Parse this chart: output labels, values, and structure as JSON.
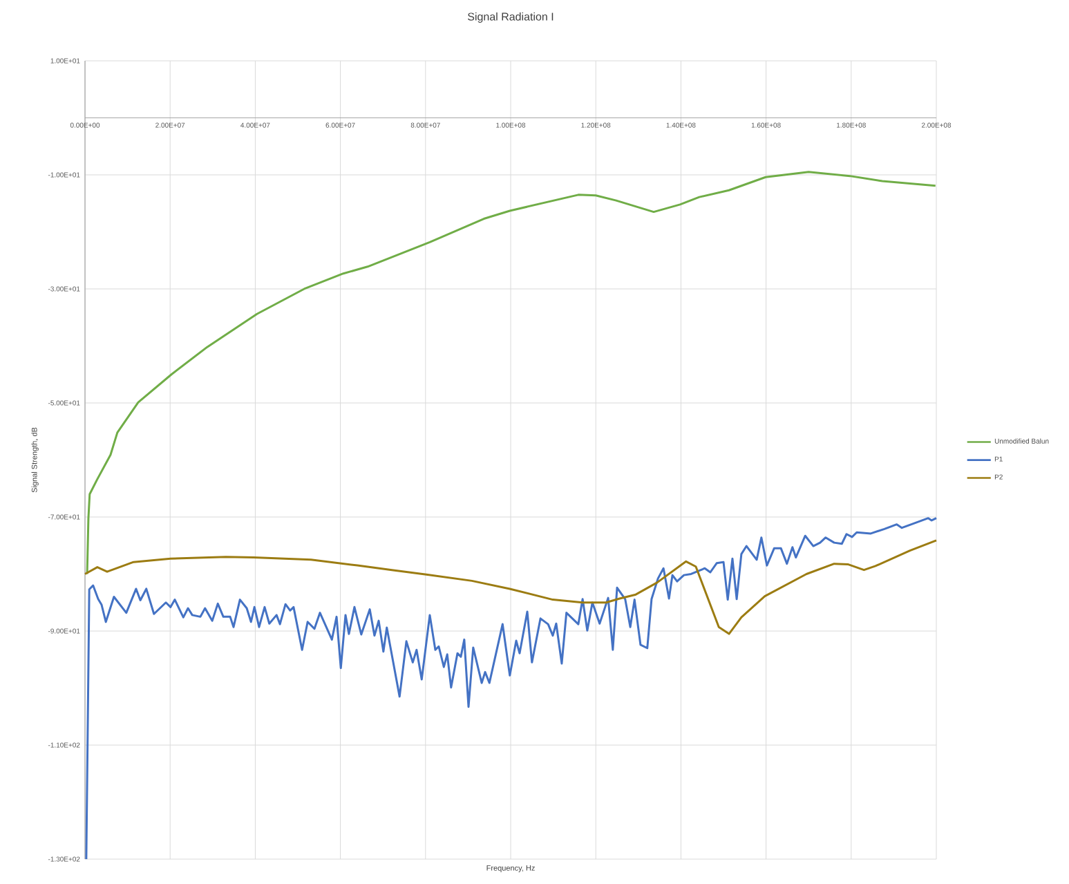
{
  "chart_data": {
    "type": "line",
    "title": "Signal Radiation I",
    "xlabel": "Frequency, Hz",
    "ylabel": "Signal Strength, dB",
    "xlim": [
      0,
      200000000.0
    ],
    "ylim": [
      -130,
      10
    ],
    "xticks": [
      {
        "value": 0,
        "label": "0.00E+00"
      },
      {
        "value": 20000000.0,
        "label": "2.00E+07"
      },
      {
        "value": 40000000.0,
        "label": "4.00E+07"
      },
      {
        "value": 60000000.0,
        "label": "6.00E+07"
      },
      {
        "value": 80000000.0,
        "label": "8.00E+07"
      },
      {
        "value": 100000000.0,
        "label": "1.00E+08"
      },
      {
        "value": 120000000.0,
        "label": "1.20E+08"
      },
      {
        "value": 140000000.0,
        "label": "1.40E+08"
      },
      {
        "value": 160000000.0,
        "label": "1.60E+08"
      },
      {
        "value": 180000000.0,
        "label": "1.80E+08"
      },
      {
        "value": 200000000.0,
        "label": "2.00E+08"
      }
    ],
    "yticks": [
      {
        "value": 10,
        "label": "1.00E+01"
      },
      {
        "value": -10,
        "label": "-1.00E+01"
      },
      {
        "value": -30,
        "label": "-3.00E+01"
      },
      {
        "value": -50,
        "label": "-5.00E+01"
      },
      {
        "value": -70,
        "label": "-7.00E+01"
      },
      {
        "value": -90,
        "label": "-9.00E+01"
      },
      {
        "value": -110,
        "label": "-1.10E+02"
      },
      {
        "value": -130,
        "label": "-1.30E+02"
      }
    ],
    "grid": true,
    "legend": "right",
    "series": [
      {
        "name": "Unmodified Balun",
        "color": "#70ad47",
        "x": [
          500000.0,
          800000.0,
          1100000.0,
          2800000.0,
          6000000.0,
          7600000.0,
          12500000.0,
          20300000.0,
          28700000.0,
          40400000.0,
          51500000.0,
          60700000.0,
          66400000.0,
          81000000.0,
          93700000.0,
          99800000.0,
          115900000.0,
          120000000.0,
          124800000.0,
          133600000.0,
          139800000.0,
          144300000.0,
          151300000.0,
          159900000.0,
          170000000.0,
          179700000.0,
          187300000.0,
          199800000.0
        ],
        "values": [
          -80,
          -70.2,
          -66,
          -63.5,
          -59.1,
          -55.2,
          -49.9,
          -45.0,
          -40.2,
          -34.4,
          -30.0,
          -27.3,
          -26.1,
          -21.8,
          -17.7,
          -16.3,
          -13.5,
          -13.6,
          -14.5,
          -16.5,
          -15.2,
          -13.9,
          -12.7,
          -10.4,
          -9.5,
          -10.2,
          -11.1,
          -11.9
        ]
      },
      {
        "name": "P1",
        "color": "#4472c4",
        "x": [
          300000.0,
          1000000.0,
          1900000.0,
          3100000.0,
          3900000.0,
          4900000.0,
          6800000.0,
          9700000.0,
          12000000.0,
          13000000.0,
          14400000.0,
          16200000.0,
          19000000.0,
          20100000.0,
          21100000.0,
          23100000.0,
          24200000.0,
          25200000.0,
          27100000.0,
          28200000.0,
          29900000.0,
          31200000.0,
          32500000.0,
          34100000.0,
          34900000.0,
          36400000.0,
          38000000.0,
          39000000.0,
          39800000.0,
          40900000.0,
          42200000.0,
          43300000.0,
          45000000.0,
          45800000.0,
          47100000.0,
          48200000.0,
          49000000.0,
          51000000.0,
          52300000.0,
          53900000.0,
          55200000.0,
          58000000.0,
          59100000.0,
          60100000.0,
          61200000.0,
          62000000.0,
          63300000.0,
          64900000.0,
          66900000.0,
          68000000.0,
          69000000.0,
          70100000.0,
          70900000.0,
          73900000.0,
          75500000.0,
          77000000.0,
          77900000.0,
          79100000.0,
          81000000.0,
          82300000.0,
          83100000.0,
          84300000.0,
          85100000.0,
          86000000.0,
          87500000.0,
          88300000.0,
          89100000.0,
          90100000.0,
          91200000.0,
          93200000.0,
          94000000.0,
          95000000.0,
          98100000.0,
          99800000.0,
          101300000.0,
          102100000.0,
          103900000.0,
          105000000.0,
          107000000.0,
          108800000.0,
          109900000.0,
          110700000.0,
          112000000.0,
          113100000.0,
          115900000.0,
          116900000.0,
          118000000.0,
          119200000.0,
          120900000.0,
          122900000.0,
          124000000.0,
          125000000.0,
          126900000.0,
          128100000.0,
          129100000.0,
          130500000.0,
          132100000.0,
          133100000.0,
          134600000.0,
          135900000.0,
          137200000.0,
          138000000.0,
          139100000.0,
          140700000.0,
          142400000.0,
          145600000.0,
          146900000.0,
          148400000.0,
          150000000.0,
          151000000.0,
          152100000.0,
          153100000.0,
          154200000.0,
          155400000.0,
          157800000.0,
          158900000.0,
          160200000.0,
          161900000.0,
          163500000.0,
          164900000.0,
          166200000.0,
          167000000.0,
          169200000.0,
          171100000.0,
          172700000.0,
          174000000.0,
          176000000.0,
          177800000.0,
          178900000.0,
          180200000.0,
          181300000.0,
          184600000.0,
          187800000.0,
          190700000.0,
          191900000.0,
          194800000.0,
          198100000.0,
          198900000.0,
          200000000.0
        ],
        "values": [
          -130,
          -82.7,
          -82.0,
          -84.4,
          -85.4,
          -88.4,
          -84.0,
          -86.8,
          -82.6,
          -84.6,
          -82.6,
          -87.0,
          -85.0,
          -85.8,
          -84.5,
          -87.6,
          -86.0,
          -87.2,
          -87.5,
          -86.0,
          -88.2,
          -85.2,
          -87.5,
          -87.5,
          -89.3,
          -84.5,
          -86.0,
          -88.4,
          -85.8,
          -89.3,
          -85.8,
          -88.7,
          -87.2,
          -88.8,
          -85.3,
          -86.4,
          -85.8,
          -93.3,
          -88.4,
          -89.6,
          -86.8,
          -91.5,
          -87.5,
          -96.5,
          -87.2,
          -90.5,
          -85.8,
          -90.6,
          -86.2,
          -90.8,
          -88.2,
          -93.6,
          -89.4,
          -101.5,
          -91.8,
          -95.5,
          -93.3,
          -98.5,
          -87.2,
          -93.3,
          -92.7,
          -96.3,
          -94.1,
          -99.9,
          -93.9,
          -94.5,
          -91.5,
          -103.3,
          -92.9,
          -99.1,
          -97.2,
          -99.1,
          -88.8,
          -97.8,
          -91.7,
          -93.9,
          -86.6,
          -95.5,
          -87.8,
          -88.8,
          -90.8,
          -88.7,
          -95.7,
          -86.8,
          -88.8,
          -84.4,
          -89.9,
          -85.0,
          -88.7,
          -84.2,
          -93.3,
          -82.4,
          -84.4,
          -89.3,
          -84.5,
          -92.4,
          -93.0,
          -84.4,
          -80.8,
          -79.0,
          -84.3,
          -80.2,
          -81.3,
          -80.2,
          -80.0,
          -79.0,
          -79.7,
          -78.1,
          -77.9,
          -84.5,
          -77.3,
          -84.4,
          -76.5,
          -75.1,
          -77.5,
          -73.6,
          -78.5,
          -75.5,
          -75.5,
          -78.2,
          -75.3,
          -77.1,
          -73.3,
          -75.1,
          -74.5,
          -73.6,
          -74.5,
          -74.7,
          -73.0,
          -73.5,
          -72.7,
          -72.9,
          -72.1,
          -71.3,
          -71.9,
          -71.1,
          -70.2,
          -70.6,
          -70.2
        ]
      },
      {
        "name": "P2",
        "color": "#9c7c12",
        "x": [
          0,
          2900000.0,
          5200000.0,
          11400000.0,
          20100000.0,
          33100000.0,
          39600000.0,
          53100000.0,
          64000000.0,
          72100000.0,
          80200000.0,
          90900000.0,
          99800000.0,
          109900000.0,
          116900000.0,
          122400000.0,
          125600000.0,
          129400000.0,
          134400000.0,
          141200000.0,
          143500000.0,
          148900000.0,
          151300000.0,
          154200000.0,
          159700000.0,
          169500000.0,
          176000000.0,
          179200000.0,
          183000000.0,
          185700000.0,
          193800000.0,
          200000000.0
        ],
        "values": [
          -80.0,
          -78.8,
          -79.6,
          -77.9,
          -77.3,
          -77.0,
          -77.1,
          -77.5,
          -78.5,
          -79.3,
          -80.1,
          -81.2,
          -82.6,
          -84.5,
          -85.0,
          -85.0,
          -84.3,
          -83.6,
          -81.5,
          -77.8,
          -78.7,
          -89.3,
          -90.5,
          -87.6,
          -83.9,
          -80.0,
          -78.2,
          -78.3,
          -79.3,
          -78.6,
          -75.9,
          -74.1
        ]
      }
    ]
  }
}
